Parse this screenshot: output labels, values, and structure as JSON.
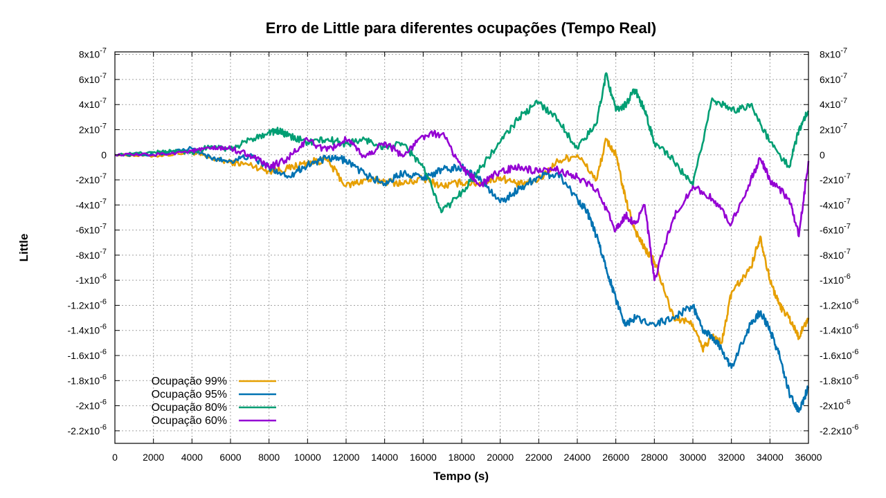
{
  "chart_data": {
    "type": "line",
    "title": "Erro de Little para diferentes ocupações (Tempo Real)",
    "xlabel": "Tempo (s)",
    "ylabel": "Little",
    "xlim": [
      0,
      36000
    ],
    "ylim": [
      -2.3e-06,
      8.2e-07
    ],
    "x_ticks": [
      0,
      2000,
      4000,
      6000,
      8000,
      10000,
      12000,
      14000,
      16000,
      18000,
      20000,
      22000,
      24000,
      26000,
      28000,
      30000,
      32000,
      34000,
      36000
    ],
    "y_ticks": [
      {
        "value": 8e-07,
        "mant": "8x10",
        "exp": "-7"
      },
      {
        "value": 6e-07,
        "mant": "6x10",
        "exp": "-7"
      },
      {
        "value": 4e-07,
        "mant": "4x10",
        "exp": "-7"
      },
      {
        "value": 2e-07,
        "mant": "2x10",
        "exp": "-7"
      },
      {
        "value": 0,
        "mant": "0",
        "exp": ""
      },
      {
        "value": -2e-07,
        "mant": "-2x10",
        "exp": "-7"
      },
      {
        "value": -4e-07,
        "mant": "-4x10",
        "exp": "-7"
      },
      {
        "value": -6e-07,
        "mant": "-6x10",
        "exp": "-7"
      },
      {
        "value": -8e-07,
        "mant": "-8x10",
        "exp": "-7"
      },
      {
        "value": -1e-06,
        "mant": "-1x10",
        "exp": "-6"
      },
      {
        "value": -1.2e-06,
        "mant": "-1.2x10",
        "exp": "-6"
      },
      {
        "value": -1.4e-06,
        "mant": "-1.4x10",
        "exp": "-6"
      },
      {
        "value": -1.6e-06,
        "mant": "-1.6x10",
        "exp": "-6"
      },
      {
        "value": -1.8e-06,
        "mant": "-1.8x10",
        "exp": "-6"
      },
      {
        "value": -2e-06,
        "mant": "-2x10",
        "exp": "-6"
      },
      {
        "value": -2.2e-06,
        "mant": "-2.2x10",
        "exp": "-6"
      }
    ],
    "grid": true,
    "legend_position": "bottom-left",
    "series": [
      {
        "name": "Ocupação 99%",
        "color": "#e69f00",
        "x": [
          0,
          2000,
          4000,
          5000,
          6000,
          7000,
          8000,
          9000,
          10000,
          11000,
          12000,
          13000,
          14000,
          15000,
          16000,
          17000,
          18000,
          19000,
          20000,
          21000,
          22000,
          23000,
          24000,
          25000,
          25500,
          26000,
          26500,
          27000,
          27500,
          28000,
          29000,
          30000,
          30500,
          31000,
          31500,
          32000,
          33000,
          33500,
          34000,
          34500,
          35000,
          35500,
          36000
        ],
        "y": [
          0,
          -1e-08,
          2e-08,
          -3e-08,
          -6e-08,
          -8e-08,
          -1.3e-07,
          -1.1e-07,
          -6e-08,
          -4e-08,
          -2.5e-07,
          -2e-07,
          -2.1e-07,
          -2.3e-07,
          -1.9e-07,
          -2.5e-07,
          -2.2e-07,
          -2.3e-07,
          -1.8e-07,
          -2.4e-07,
          -2e-07,
          -5e-08,
          0,
          -2e-07,
          1.2e-07,
          0,
          -3.5e-07,
          -6e-07,
          -7.5e-07,
          -8.5e-07,
          -1.3e-06,
          -1.35e-06,
          -1.55e-06,
          -1.45e-06,
          -1.5e-06,
          -1.1e-06,
          -9e-07,
          -6.5e-07,
          -1e-06,
          -1.2e-06,
          -1.3e-06,
          -1.45e-06,
          -1.3e-06
        ]
      },
      {
        "name": "Ocupação 95%",
        "color": "#0072b2",
        "x": [
          0,
          2000,
          4000,
          5000,
          6000,
          7000,
          8000,
          9000,
          10000,
          11000,
          12000,
          13000,
          14000,
          15000,
          16000,
          17000,
          18000,
          19000,
          20000,
          21000,
          22000,
          23000,
          24000,
          24500,
          25000,
          25500,
          26000,
          26500,
          27000,
          28000,
          29000,
          30000,
          30500,
          31000,
          31500,
          32000,
          33000,
          33500,
          34000,
          34500,
          35000,
          35500,
          36000
        ],
        "y": [
          0,
          0,
          5e-08,
          -3e-08,
          -5e-08,
          -1e-08,
          -1e-07,
          -1.7e-07,
          -8e-08,
          -3e-08,
          -4e-08,
          -1.6e-07,
          -2.3e-07,
          -1.4e-07,
          -1.8e-07,
          -1.2e-07,
          -1e-07,
          -2e-07,
          -3.8e-07,
          -2.7e-07,
          -1.7e-07,
          -1.5e-07,
          -3.5e-07,
          -4.5e-07,
          -6.5e-07,
          -9e-07,
          -1.15e-06,
          -1.35e-06,
          -1.3e-06,
          -1.35e-06,
          -1.3e-06,
          -1.2e-06,
          -1.4e-06,
          -1.45e-06,
          -1.55e-06,
          -1.7e-06,
          -1.35e-06,
          -1.25e-06,
          -1.4e-06,
          -1.6e-06,
          -1.9e-06,
          -2.05e-06,
          -1.85e-06
        ]
      },
      {
        "name": "Ocupação 80%",
        "color": "#009e73",
        "x": [
          0,
          2000,
          3000,
          4000,
          5000,
          6000,
          7000,
          8000,
          8500,
          9000,
          10000,
          11000,
          12000,
          13000,
          14000,
          15000,
          16000,
          17000,
          18000,
          19000,
          20000,
          21000,
          22000,
          23000,
          24000,
          25000,
          25500,
          26000,
          26500,
          27000,
          27500,
          28000,
          29000,
          30000,
          31000,
          32000,
          33000,
          34000,
          35000,
          35500,
          36000
        ],
        "y": [
          0,
          2e-08,
          3e-08,
          2e-08,
          7e-08,
          4e-08,
          1.2e-07,
          1.8e-07,
          1.9e-07,
          1.5e-07,
          1e-07,
          1.2e-07,
          9e-08,
          1.2e-07,
          6e-08,
          8e-08,
          -1e-07,
          -4.5e-07,
          -3e-07,
          -1e-07,
          1e-07,
          3e-07,
          4.2e-07,
          2.8e-07,
          5e-08,
          2.5e-07,
          6.5e-07,
          3.5e-07,
          4e-07,
          5.2e-07,
          3.5e-07,
          1e-07,
          -5e-08,
          -2.5e-07,
          4.5e-07,
          3.5e-07,
          4e-07,
          1e-07,
          -1e-07,
          2e-07,
          3.5e-07
        ]
      },
      {
        "name": "Ocupação 60%",
        "color": "#9400d3",
        "x": [
          0,
          2000,
          4000,
          5000,
          6000,
          7000,
          8000,
          9000,
          10000,
          11000,
          12000,
          13000,
          14000,
          15000,
          16000,
          17000,
          18000,
          19000,
          20000,
          21000,
          22000,
          23000,
          24000,
          25000,
          26000,
          26500,
          27000,
          27500,
          28000,
          29000,
          30000,
          31000,
          32000,
          33000,
          33500,
          34000,
          35000,
          35500,
          36000
        ],
        "y": [
          0,
          0,
          3e-08,
          5e-08,
          5e-08,
          0,
          -1e-07,
          -3e-08,
          1.2e-07,
          3e-08,
          1.2e-07,
          -2e-08,
          1e-07,
          -1e-08,
          1.5e-07,
          1.7e-07,
          -1e-07,
          -2.4e-07,
          -1.3e-07,
          -1e-07,
          -1.4e-07,
          -1.2e-07,
          -1.8e-07,
          -2.8e-07,
          -6e-07,
          -4.8e-07,
          -5.5e-07,
          -4e-07,
          -1e-06,
          -5e-07,
          -2.5e-07,
          -3.5e-07,
          -5.5e-07,
          -2e-07,
          -3e-08,
          -2e-07,
          -3.5e-07,
          -6.5e-07,
          -5e-08
        ]
      }
    ]
  }
}
